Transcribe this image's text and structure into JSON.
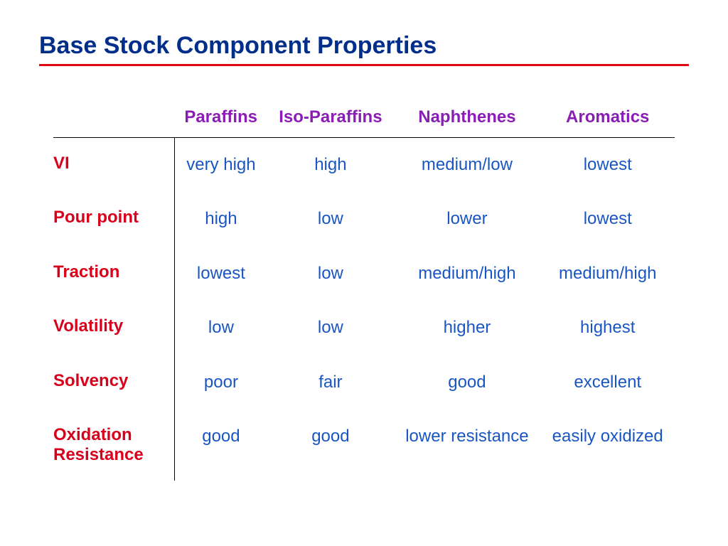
{
  "title": "Base Stock Component Properties",
  "colors": {
    "title": "#002e8a",
    "underline": "#e30613",
    "column_header": "#8a1db5",
    "row_header": "#d9001b",
    "cell": "#1956c4",
    "background": "#ffffff",
    "rule": "#000000"
  },
  "typography": {
    "title_fontsize": 34,
    "header_fontsize": 24,
    "cell_fontsize": 24,
    "font_family": "Arial"
  },
  "table": {
    "type": "table",
    "columns": [
      "Paraffins",
      "Iso-Paraffins",
      "Naphthenes",
      "Aromatics"
    ],
    "rows": [
      {
        "label": "VI",
        "cells": [
          "very high",
          "high",
          "medium/low",
          "lowest"
        ]
      },
      {
        "label": "Pour point",
        "cells": [
          "high",
          "low",
          "lower",
          "lowest"
        ]
      },
      {
        "label": "Traction",
        "cells": [
          "lowest",
          "low",
          "medium/high",
          "medium/high"
        ]
      },
      {
        "label": "Volatility",
        "cells": [
          "low",
          "low",
          "higher",
          "highest"
        ]
      },
      {
        "label": "Solvency",
        "cells": [
          "poor",
          "fair",
          "good",
          "excellent"
        ]
      },
      {
        "label": "Oxidation Resistance",
        "cells": [
          "good",
          "good",
          "lower resistance",
          "easily oxidized"
        ]
      }
    ]
  }
}
